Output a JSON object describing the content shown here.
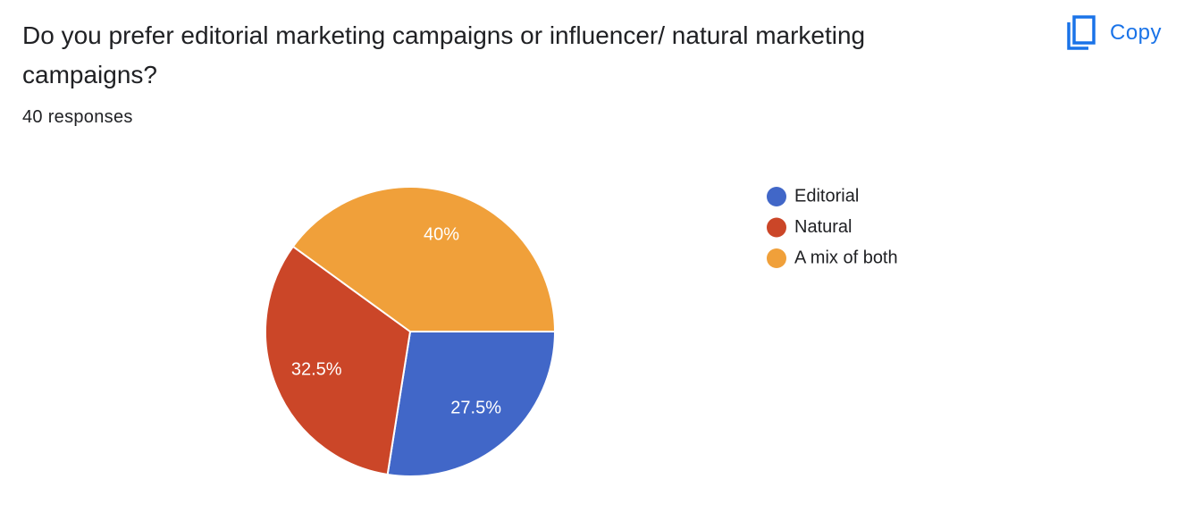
{
  "chart_data": {
    "type": "pie",
    "title": "Do you prefer editorial marketing campaigns or influencer/ natural marketing campaigns?",
    "subtitle": "40 responses",
    "categories": [
      "Editorial",
      "Natural",
      "A mix of both"
    ],
    "values": [
      27.5,
      32.5,
      40
    ],
    "value_labels": [
      "27.5%",
      "32.5%",
      "40%"
    ],
    "colors": [
      "#4167c8",
      "#cb4628",
      "#f0a03a"
    ],
    "legend": "right"
  },
  "toolbar": {
    "copy": "Copy"
  }
}
